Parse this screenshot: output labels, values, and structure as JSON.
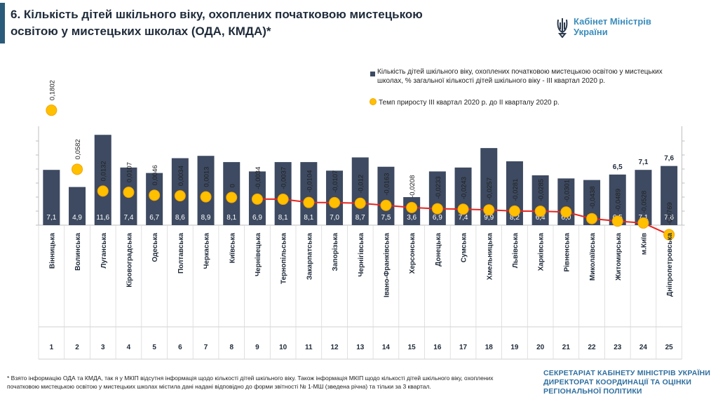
{
  "header": {
    "title": "6. Кількість дітей шкільного віку, охоплених початковою мистецькою освітою у мистецьких школах (ОДА, КМДА)*",
    "logo_text": "Кабінет Міністрів України"
  },
  "footer": {
    "footnote": "* Взято інформацію ОДА та КМДА, так я у МКІП відсутня інформація щодо кількості дітей шкільного віку. Також інформація МКІП щодо кількості дітей шкільного віку, охоплених початковою мистецькою освітою у мистецьких школах містила дані надані відповідно до форми звітності № 1-МШ (зведена річна) та тільки за 3 квартал.",
    "secretariat": "СЕКРЕТАРІАТ КАБІНЕТУ МІНІСТРІВ УКРАЇНИ ДИРЕКТОРАТ КООРДИНАЦІЇ ТА ОЦІНКИ РЕГІОНАЛЬНОЇ ПОЛІТИКИ"
  },
  "colors": {
    "bar": "#3d4a61",
    "line": "#e8241e",
    "marker": "#ffc000",
    "marker_stroke": "#f5a300",
    "title_bar": "#2b5b7a",
    "logo": "#3c8dbc"
  },
  "chart_data": {
    "type": "bar",
    "categories": [
      "Вінницька",
      "Волинська",
      "Луганська",
      "Кіровоградська",
      "Одеська",
      "Полтавська",
      "Черкаська",
      "Київська",
      "Чернівецька",
      "Тернопільська",
      "Закарпатська",
      "Запорізька",
      "Чернігівська",
      "Івано-Франківська",
      "Херсонська",
      "Донецька",
      "Сумська",
      "Хмельницька",
      "Львівська",
      "Харківська",
      "Рівненська",
      "Миколаївська",
      "Житомирська",
      "м.Київ",
      "Дніпропетровська"
    ],
    "ranks": [
      "1",
      "2",
      "3",
      "4",
      "5",
      "6",
      "7",
      "8",
      "9",
      "10",
      "11",
      "12",
      "13",
      "14",
      "15",
      "16",
      "17",
      "18",
      "19",
      "20",
      "21",
      "22",
      "23",
      "24",
      "25"
    ],
    "series": [
      {
        "name": "Кількість дітей шкільного віку, охоплених початковою мистецькою освітою у мистецьких школах, % загальної кількості дітей шкільного віку - ІІІ квартал 2020 р.",
        "type": "bar",
        "values": [
          7.1,
          4.9,
          11.6,
          7.4,
          6.7,
          8.6,
          8.9,
          8.1,
          6.9,
          8.1,
          8.1,
          7.0,
          8.7,
          7.5,
          3.6,
          6.9,
          7.4,
          9.9,
          8.2,
          6.4,
          6.0,
          5.8,
          6.5,
          7.1,
          7.6
        ],
        "labels": [
          "7,1",
          "4,9",
          "11,6",
          "7,4",
          "6,7",
          "8,6",
          "8,9",
          "8,1",
          "6,9",
          "8,1",
          "8,1",
          "7,0",
          "8,7",
          "7,5",
          "3,6",
          "6,9",
          "7,4",
          "9,9",
          "8,2",
          "6,4",
          "6,0",
          "5,8",
          "6,5",
          "7,1",
          "7,6"
        ]
      },
      {
        "name": "Темп приросту ІІІ квартал 2020 р. до ІІ кварталу 2020 р.",
        "type": "line",
        "values": [
          0.1802,
          0.0582,
          0.0132,
          0.0107,
          0.0046,
          0.0034,
          0.0013,
          0,
          -0.0034,
          -0.0037,
          -0.0104,
          -0.0107,
          -0.012,
          -0.0163,
          -0.0208,
          -0.0233,
          -0.0243,
          -0.0257,
          -0.0281,
          -0.0285,
          -0.0301,
          -0.0438,
          -0.0489,
          -0.0528,
          -0.0769
        ],
        "labels": [
          "0,1802",
          "0,0582",
          "0,0132",
          "0,0107",
          "0,0046",
          "0,0034",
          "0,0013",
          "0",
          "-0,0034",
          "-0,0037",
          "-0,0104",
          "-0,0107",
          "-0,012",
          "-0,0163",
          "-0,0208",
          "-0,0233",
          "-0,0243",
          "-0,0257",
          "-0,0281",
          "-0,0285",
          "-0,0301",
          "-0,0438",
          "-0,0489",
          "-0,0528",
          "-0,0769"
        ]
      }
    ],
    "line_segment_start_index": 8,
    "bar_labels_above": {
      "22": "6,5",
      "23": "7,1",
      "24": "7,6"
    },
    "y_left_range": [
      0,
      14
    ],
    "y_right_range": [
      -0.1,
      0.2
    ],
    "legend_position": "top-right",
    "grid": false
  }
}
